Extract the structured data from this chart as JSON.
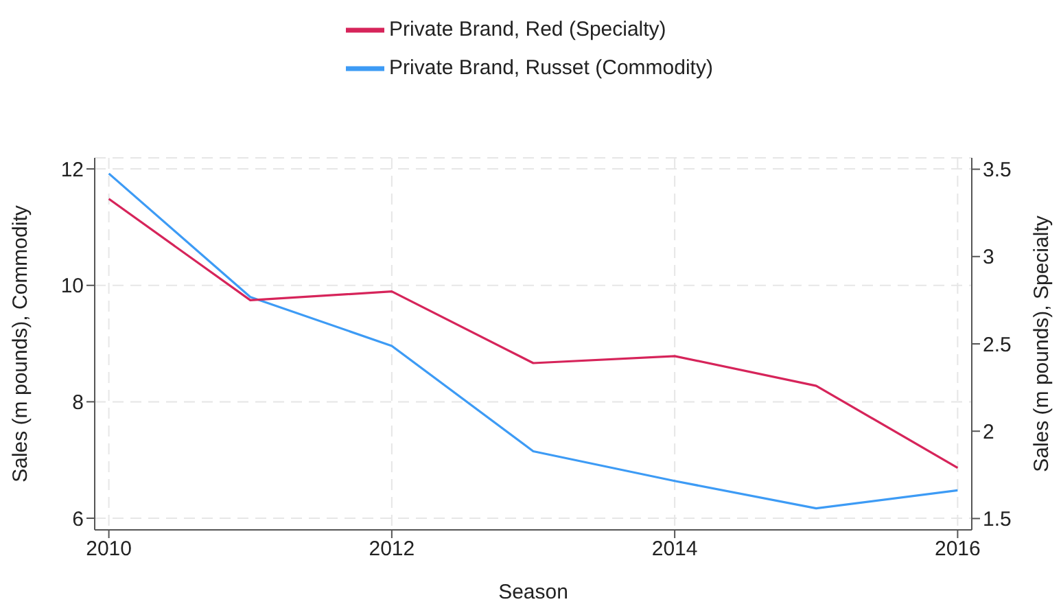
{
  "chart_data": {
    "type": "line",
    "xlabel": "Season",
    "ylabel": "Sales (m pounds), Commodity",
    "y2label": "Sales (m pounds), Specialty",
    "x": [
      2010,
      2011,
      2012,
      2013,
      2014,
      2015,
      2016
    ],
    "series": [
      {
        "name": "Private Brand, Russet (Commodity)",
        "color": "#3d9bf5",
        "values": [
          11.92,
          9.8,
          8.96,
          7.15,
          6.64,
          6.17,
          6.48
        ]
      },
      {
        "name": "Private Brand, Red (Specialty)",
        "color": "#d6245a",
        "axis": "y2",
        "values": [
          3.33,
          2.75,
          2.8,
          2.39,
          2.43,
          2.26,
          1.79
        ]
      }
    ],
    "xlim": [
      2009.9,
      2016.1
    ],
    "xticks": [
      2010,
      2012,
      2014,
      2016
    ],
    "ylim": [
      5.8,
      12.19
    ],
    "yticks": [
      6,
      8,
      10,
      12
    ],
    "y2lim": [
      1.435,
      3.565
    ],
    "y2ticks": [
      1.5,
      2,
      2.5,
      3,
      3.5
    ],
    "grid": true,
    "legend": "top",
    "marker": "none",
    "line_style": "solid"
  }
}
